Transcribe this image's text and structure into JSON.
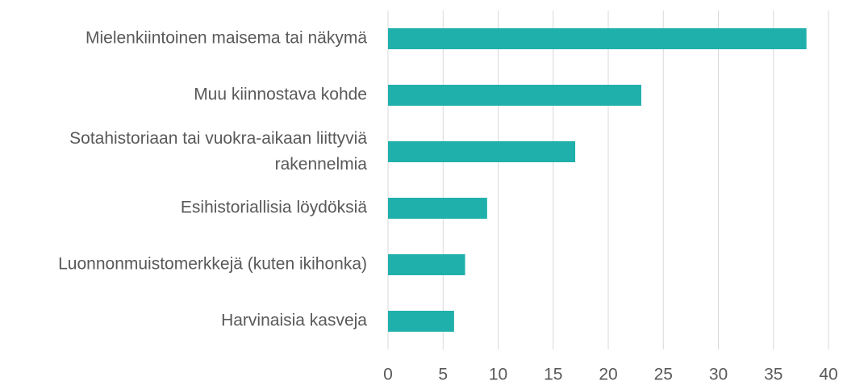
{
  "chart_data": {
    "type": "barh",
    "categories": [
      "Mielenkiintoinen maisema tai näkymä",
      "Muu kiinnostava kohde",
      "Sotahistoriaan tai vuokra-aikaan liittyviä rakennelmia",
      "Esihistoriallisia löydöksiä",
      "Luonnonmuistomerkkejä (kuten ikihonka)",
      "Harvinaisia kasveja"
    ],
    "values": [
      38,
      23,
      17,
      9,
      7,
      6
    ],
    "color": "#20b0ab",
    "xlim": [
      0,
      40
    ],
    "xticks": [
      0,
      5,
      10,
      15,
      20,
      25,
      30,
      35,
      40
    ],
    "grid": true
  }
}
